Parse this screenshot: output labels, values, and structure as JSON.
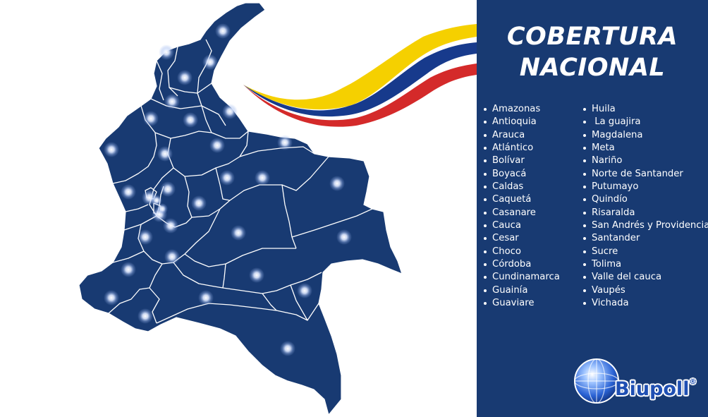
{
  "panel": {
    "background": "#183a72",
    "title_line1": "COBERTURA",
    "title_line2": "NACIONAL"
  },
  "departments_left": [
    "Amazonas",
    "Antioquia",
    "Arauca",
    "Atlántico",
    "Bolívar",
    "Boyacá",
    "Caldas",
    "Caquetá",
    "Casanare",
    "Cauca",
    "Cesar",
    "Choco",
    "Córdoba",
    "Cundinamarca",
    "Guainía",
    "Guaviare"
  ],
  "departments_right": [
    "Huila",
    " La guajira",
    "Magdalena",
    "Meta",
    "Nariño",
    "Norte de Santander",
    "Putumayo",
    "Quindío",
    "Risaralda",
    "San Andrés y Providencia",
    "Santander",
    "Sucre",
    "Tolima",
    "Valle del cauca",
    "Vaupés",
    "Vichada"
  ],
  "map": {
    "fill_color": "#183a72",
    "border_color": "#ffffff",
    "marker_icon": "globe-marker-icon",
    "marker_count": 34
  },
  "flag": {
    "colors": [
      "#f5d000",
      "#173a8c",
      "#d42a2a"
    ],
    "icon": "colombia-flag-ribbon-icon"
  },
  "logo": {
    "text": "Biupoll",
    "reg_mark": "®",
    "icon": "globe-logo-icon"
  }
}
